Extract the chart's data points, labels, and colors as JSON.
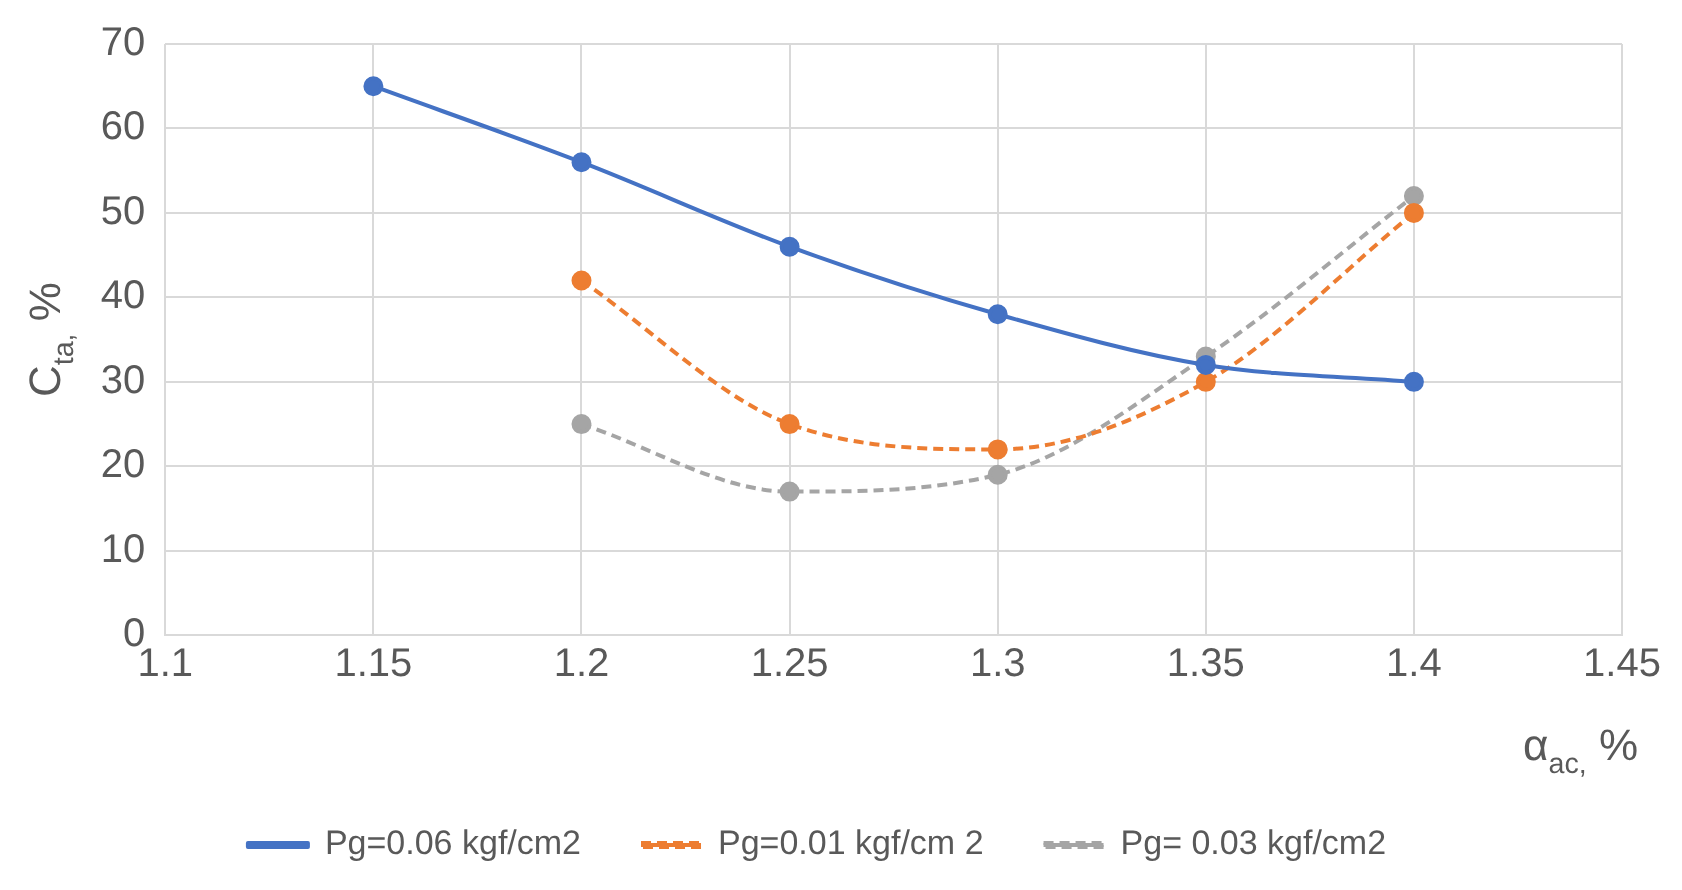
{
  "chart_data": {
    "type": "line",
    "xlabel": "α$_{ac,}$ %",
    "ylabel": "C$_{ta,}$ %",
    "xlim": [
      1.1,
      1.45
    ],
    "xticks": [
      1.1,
      1.15,
      1.2,
      1.25,
      1.3,
      1.35,
      1.4,
      1.45
    ],
    "ylim": [
      0,
      70
    ],
    "yticks": [
      0,
      10,
      20,
      30,
      40,
      50,
      60,
      70
    ],
    "grid": true,
    "legend": "bottom",
    "marker": "circle",
    "series": [
      {
        "name": "Pg=0.06 kgf/cm2",
        "color": "#4472c4",
        "line_style": "solid",
        "x": [
          1.15,
          1.2,
          1.25,
          1.3,
          1.35,
          1.4
        ],
        "values": [
          65,
          56,
          46,
          38,
          32,
          30
        ]
      },
      {
        "name": "Pg=0.01 kgf/cm 2",
        "color": "#ed7d31",
        "line_style": "dashed",
        "x": [
          1.2,
          1.25,
          1.3,
          1.35,
          1.4
        ],
        "values": [
          42,
          25,
          22,
          30,
          50
        ]
      },
      {
        "name": "Pg= 0.03 kgf/cm2",
        "color": "#a5a5a5",
        "line_style": "dashed",
        "x": [
          1.2,
          1.25,
          1.3,
          1.35,
          1.4
        ],
        "values": [
          25,
          17,
          19,
          33,
          52
        ]
      }
    ]
  }
}
